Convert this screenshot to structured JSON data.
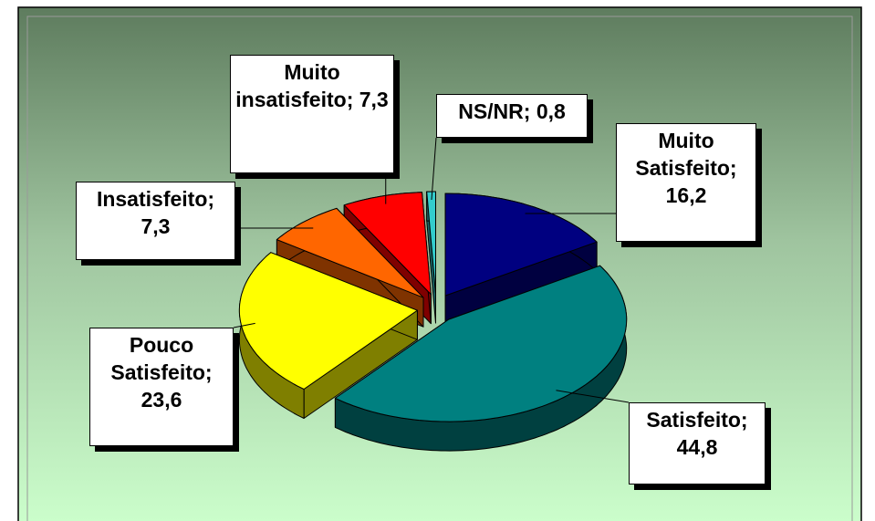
{
  "chart_data": {
    "type": "pie3d",
    "value_labels": [
      "Muito Satisfeito; 16,2",
      "Satisfeito; 44,8",
      "Pouco Satisfeito; 23,6",
      "Insatisfeito; 7,3",
      "Muito insatisfeito; 7,3",
      "NS/NR; 0,8"
    ],
    "values": [
      16.2,
      44.8,
      23.6,
      7.3,
      7.3,
      0.8
    ],
    "colors": [
      "#000080",
      "#008080",
      "#ffff00",
      "#ff6600",
      "#ff0000",
      "#33cccc"
    ],
    "start_angle": 0,
    "direction": "clockwise",
    "exploded": true
  }
}
